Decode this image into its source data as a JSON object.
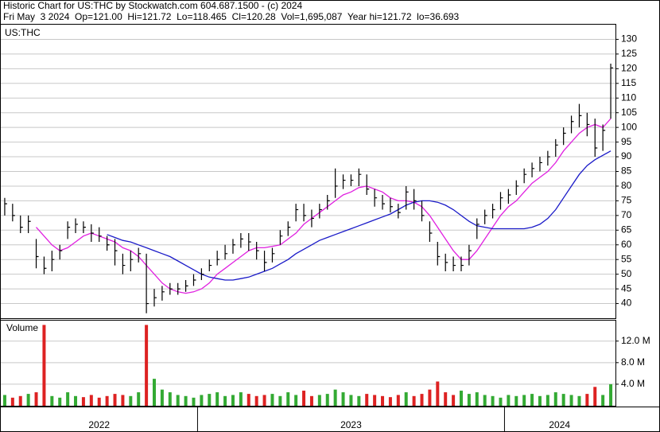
{
  "chart_data": {
    "type": "ohlc",
    "title": "Historic Chart for US:THC by Stockwatch.com 604.687.1500 - (c) 2024",
    "subtitle": "Fri May  3 2024  Op=121.00  Hi=121.72  Lo=118.465  Cl=120.28  Vol=1,695,087  Year hi=121.72  lo=36.693",
    "symbol_label": "US:THC",
    "categories": [
      "2022",
      null,
      null,
      null,
      null,
      null,
      null,
      null,
      null,
      null,
      null,
      null,
      null,
      null,
      null,
      null,
      null,
      null,
      null,
      null,
      null,
      null,
      null,
      null,
      null,
      "2023",
      null,
      null,
      null,
      null,
      null,
      null,
      null,
      null,
      null,
      null,
      null,
      null,
      null,
      null,
      null,
      null,
      null,
      null,
      null,
      null,
      null,
      null,
      null,
      null,
      null,
      null,
      null,
      null,
      null,
      null,
      null,
      null,
      null,
      null,
      null,
      null,
      null,
      null,
      "2024",
      null,
      null,
      null,
      null,
      null,
      null,
      null,
      null,
      null,
      null,
      null,
      null,
      null
    ],
    "high": [
      76,
      74,
      70,
      70,
      62,
      56,
      58,
      60,
      68,
      69,
      68,
      67,
      66,
      63,
      62,
      57,
      58,
      59,
      57,
      45,
      46,
      47,
      47,
      48,
      50,
      52,
      55,
      58,
      60,
      62,
      64,
      64,
      61,
      58,
      59,
      65,
      68,
      74,
      74,
      72,
      74,
      77,
      86,
      84,
      84,
      86,
      84,
      79,
      77,
      76,
      74,
      80,
      79,
      75,
      68,
      61,
      57,
      56,
      56,
      60,
      69,
      72,
      74,
      78,
      79,
      82,
      86,
      88,
      90,
      92,
      96,
      100,
      104,
      108,
      105,
      103,
      101,
      121.72
    ],
    "low": [
      70,
      68,
      64,
      64,
      52,
      50,
      51,
      55,
      62,
      64,
      64,
      61,
      61,
      58,
      53,
      50,
      51,
      54,
      36.69,
      39,
      41,
      43,
      43,
      44,
      46,
      48,
      51,
      53,
      55,
      57,
      59,
      58,
      55,
      51,
      54,
      60,
      63,
      68,
      68,
      66,
      69,
      72,
      76,
      79,
      80,
      80,
      77,
      73,
      72,
      71,
      69,
      72,
      72,
      68,
      61,
      53,
      51,
      51,
      51,
      53,
      62,
      67,
      69,
      72,
      74,
      77,
      81,
      83,
      85,
      87,
      90,
      94,
      98,
      100,
      97,
      90,
      92,
      103
    ],
    "close": [
      74,
      70,
      66,
      68,
      56,
      52,
      55,
      58,
      66,
      67,
      66,
      64,
      63,
      60,
      58,
      53,
      55,
      57,
      40,
      42,
      44,
      45,
      45,
      46,
      48,
      50,
      53,
      55,
      57,
      60,
      62,
      61,
      58,
      54,
      57,
      63,
      66,
      72,
      70,
      69,
      72,
      75,
      80,
      82,
      82,
      84,
      79,
      76,
      74,
      73,
      71,
      78,
      75,
      70,
      64,
      56,
      54,
      53,
      53,
      58,
      67,
      70,
      72,
      76,
      77,
      80,
      84,
      86,
      88,
      90,
      94,
      98,
      102,
      104,
      101,
      93,
      99,
      120.28
    ],
    "bar_color": "#000000",
    "moving_averages": [
      {
        "color": "#e020e0",
        "values": [
          null,
          null,
          null,
          null,
          66,
          63,
          60,
          58,
          59,
          61,
          63,
          64,
          63,
          62,
          61,
          59,
          58,
          56,
          53,
          50,
          47,
          45,
          44,
          43.5,
          44,
          45,
          47,
          50,
          52,
          54,
          56,
          58,
          59,
          59,
          59.5,
          60,
          62,
          64,
          67,
          69,
          71,
          73,
          75,
          77,
          78,
          79.5,
          80,
          79,
          78,
          76,
          75,
          75,
          74.5,
          73,
          70,
          66,
          62,
          58,
          55,
          55,
          58,
          62,
          66,
          70,
          73,
          75,
          78,
          81,
          83,
          85,
          88,
          92,
          95,
          98,
          100,
          101,
          100,
          103
        ]
      },
      {
        "color": "#1a1ac8",
        "values": [
          null,
          null,
          null,
          null,
          null,
          null,
          null,
          null,
          null,
          null,
          null,
          null,
          null,
          63.5,
          62.5,
          61.5,
          61,
          60,
          59,
          58,
          57,
          56,
          54.5,
          53,
          51.5,
          50,
          49,
          48.5,
          48,
          48,
          48.5,
          49,
          50,
          51,
          52,
          53.5,
          55,
          57,
          58.5,
          60,
          61.5,
          62.5,
          63.5,
          64.5,
          65.5,
          66.5,
          67.5,
          68.5,
          69.5,
          70.5,
          72,
          73.5,
          74.5,
          75,
          75,
          74.5,
          73.5,
          72,
          70,
          68,
          66.5,
          66,
          65.5,
          65.5,
          65.5,
          65.5,
          65.5,
          66,
          67,
          69,
          72,
          76,
          80,
          84,
          87,
          89,
          90.5,
          92
        ]
      }
    ],
    "ylim": [
      35,
      135
    ],
    "yticks": [
      40,
      45,
      50,
      55,
      60,
      65,
      70,
      75,
      80,
      85,
      90,
      95,
      100,
      105,
      110,
      115,
      120,
      125,
      130
    ],
    "grid": true,
    "volume": {
      "label": "Volume",
      "up_color": "#33aa33",
      "down_color": "#dd2222",
      "values": [
        2.0,
        1.5,
        1.8,
        2.2,
        2.5,
        15.0,
        1.8,
        1.5,
        2.5,
        1.8,
        1.6,
        2.0,
        1.5,
        1.8,
        2.2,
        2.0,
        1.8,
        2.5,
        15.0,
        5.0,
        3.0,
        2.5,
        2.0,
        1.8,
        1.5,
        2.0,
        2.2,
        2.5,
        1.8,
        2.0,
        2.5,
        2.2,
        1.8,
        2.0,
        2.2,
        1.8,
        2.5,
        2.0,
        2.8,
        1.8,
        2.0,
        2.2,
        3.0,
        2.5,
        2.0,
        1.8,
        2.2,
        2.0,
        1.8,
        1.6,
        2.0,
        2.5,
        1.8,
        2.2,
        3.0,
        4.5,
        2.5,
        2.0,
        2.8,
        2.2,
        2.5,
        2.0,
        1.8,
        1.5,
        2.0,
        1.8,
        2.0,
        2.2,
        1.8,
        2.0,
        2.5,
        2.2,
        2.0,
        1.8,
        2.2,
        3.5,
        2.0,
        4.0
      ],
      "ylim": [
        0,
        15.8
      ],
      "yticks": [
        {
          "value": 4,
          "label": "4.0 M"
        },
        {
          "value": 8,
          "label": "8.0 M"
        },
        {
          "value": 12,
          "label": "12.0 M"
        }
      ]
    }
  }
}
